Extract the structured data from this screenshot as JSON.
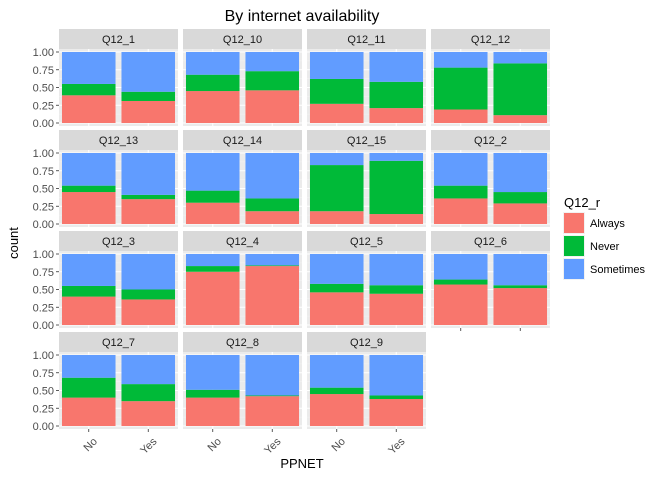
{
  "chart_data": {
    "type": "bar",
    "stacked": true,
    "title": "By internet availability",
    "xlabel": "PPNET",
    "ylabel": "count",
    "ylim": [
      0,
      1
    ],
    "y_ticks": [
      "0.00",
      "0.25",
      "0.50",
      "0.75",
      "1.00"
    ],
    "categories": [
      "No",
      "Yes"
    ],
    "legend": {
      "title": "Q12_r",
      "position": "right",
      "entries": [
        {
          "name": "Always",
          "color": "#F8766D"
        },
        {
          "name": "Never",
          "color": "#00BA38"
        },
        {
          "name": "Sometimes",
          "color": "#619CFF"
        }
      ]
    },
    "grid": true,
    "facets": [
      {
        "label": "Q12_1",
        "bars": [
          {
            "always": 0.39,
            "never": 0.16
          },
          {
            "always": 0.31,
            "never": 0.13
          }
        ]
      },
      {
        "label": "Q12_10",
        "bars": [
          {
            "always": 0.45,
            "never": 0.23
          },
          {
            "always": 0.46,
            "never": 0.27
          }
        ]
      },
      {
        "label": "Q12_11",
        "bars": [
          {
            "always": 0.27,
            "never": 0.35
          },
          {
            "always": 0.21,
            "never": 0.37
          }
        ]
      },
      {
        "label": "Q12_12",
        "bars": [
          {
            "always": 0.19,
            "never": 0.59
          },
          {
            "always": 0.11,
            "never": 0.73
          }
        ]
      },
      {
        "label": "Q12_13",
        "bars": [
          {
            "always": 0.45,
            "never": 0.09
          },
          {
            "always": 0.35,
            "never": 0.06
          }
        ]
      },
      {
        "label": "Q12_14",
        "bars": [
          {
            "always": 0.3,
            "never": 0.17
          },
          {
            "always": 0.18,
            "never": 0.18
          }
        ]
      },
      {
        "label": "Q12_15",
        "bars": [
          {
            "always": 0.18,
            "never": 0.65
          },
          {
            "always": 0.14,
            "never": 0.75
          }
        ]
      },
      {
        "label": "Q12_2",
        "bars": [
          {
            "always": 0.36,
            "never": 0.18
          },
          {
            "always": 0.29,
            "never": 0.16
          }
        ]
      },
      {
        "label": "Q12_3",
        "bars": [
          {
            "always": 0.4,
            "never": 0.15
          },
          {
            "always": 0.36,
            "never": 0.14
          }
        ]
      },
      {
        "label": "Q12_4",
        "bars": [
          {
            "always": 0.75,
            "never": 0.08
          },
          {
            "always": 0.83,
            "never": 0.01
          }
        ]
      },
      {
        "label": "Q12_5",
        "bars": [
          {
            "always": 0.46,
            "never": 0.12
          },
          {
            "always": 0.44,
            "never": 0.12
          }
        ]
      },
      {
        "label": "Q12_6",
        "bars": [
          {
            "always": 0.57,
            "never": 0.07
          },
          {
            "always": 0.52,
            "never": 0.04
          }
        ]
      },
      {
        "label": "Q12_7",
        "bars": [
          {
            "always": 0.4,
            "never": 0.28
          },
          {
            "always": 0.35,
            "never": 0.24
          }
        ]
      },
      {
        "label": "Q12_8",
        "bars": [
          {
            "always": 0.4,
            "never": 0.11
          },
          {
            "always": 0.42,
            "never": 0.01
          }
        ]
      },
      {
        "label": "Q12_9",
        "bars": [
          {
            "always": 0.45,
            "never": 0.09
          },
          {
            "always": 0.38,
            "never": 0.05
          }
        ]
      }
    ]
  }
}
